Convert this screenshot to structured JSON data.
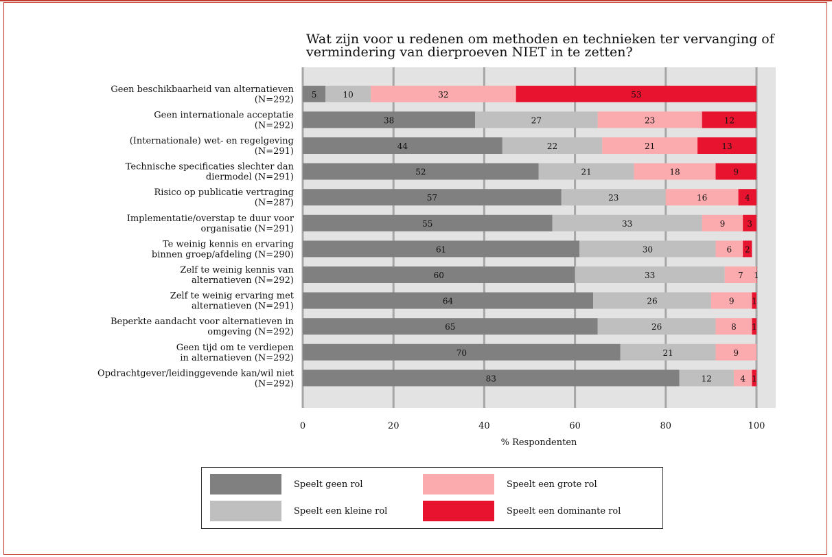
{
  "chart_data": {
    "type": "bar",
    "orientation": "horizontal",
    "stacked": true,
    "title": "Wat zijn voor u redenen om methoden en technieken ter vervanging of vermindering van dierproeven NIET in te zetten?",
    "title_lines": [
      "Wat zijn voor u redenen om methoden en technieken ter vervanging of",
      "vermindering van dierproeven NIET in te zetten?"
    ],
    "xlabel": "% Respondenten",
    "ylabel": "",
    "xlim": [
      0,
      100
    ],
    "xticks": [
      0,
      20,
      40,
      60,
      80,
      100
    ],
    "grid": true,
    "legend_position": "bottom",
    "categories": [
      [
        "Geen beschikbaarheid van alternatieven",
        "(N=292)"
      ],
      [
        "Geen internationale acceptatie",
        "(N=292)"
      ],
      [
        "(Internationale) wet- en regelgeving",
        "(N=291)"
      ],
      [
        "Technische specificaties slechter dan",
        "diermodel (N=291)"
      ],
      [
        "Risico op publicatie vertraging",
        "(N=287)"
      ],
      [
        "Implementatie/overstap te duur voor",
        "organisatie (N=291)"
      ],
      [
        "Te weinig kennis en ervaring",
        "binnen groep/afdeling (N=290)"
      ],
      [
        "Zelf te weinig kennis van",
        "alternatieven (N=292)"
      ],
      [
        "Zelf te weinig ervaring met",
        "alternatieven (N=291)"
      ],
      [
        "Beperkte aandacht voor alternatieven in",
        "omgeving (N=292)"
      ],
      [
        "Geen tijd om te verdiepen",
        "in alternatieven (N=292)"
      ],
      [
        "Opdrachtgever/leidinggevende kan/wil niet",
        "(N=292)"
      ]
    ],
    "series": [
      {
        "name": "Speelt geen rol",
        "color": "#808080",
        "values": [
          5,
          38,
          44,
          52,
          57,
          55,
          61,
          60,
          64,
          65,
          70,
          83
        ]
      },
      {
        "name": "Speelt een kleine rol",
        "color": "#bfbfbf",
        "values": [
          10,
          27,
          22,
          21,
          23,
          33,
          30,
          33,
          26,
          26,
          21,
          12
        ]
      },
      {
        "name": "Speelt een grote rol",
        "color": "#fbaaad",
        "values": [
          32,
          23,
          21,
          18,
          16,
          9,
          6,
          7,
          9,
          8,
          9,
          4
        ]
      },
      {
        "name": "Speelt een dominante rol",
        "color": "#e8132e",
        "values": [
          53,
          12,
          13,
          9,
          4,
          3,
          2,
          1,
          1,
          1,
          null,
          1
        ]
      }
    ]
  }
}
